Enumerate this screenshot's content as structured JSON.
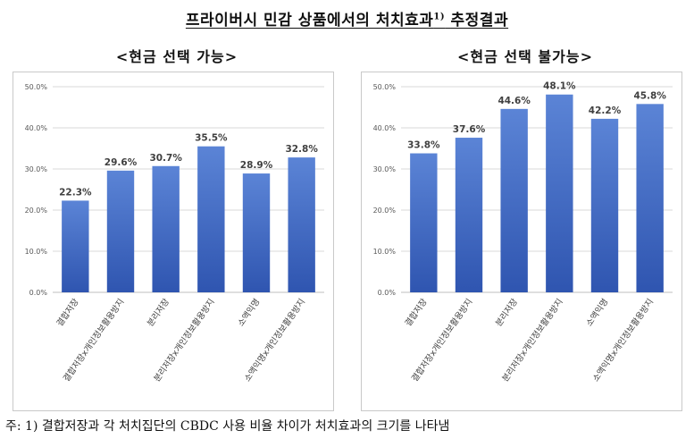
{
  "header": {
    "title": "프라이버시 민감 상품에서의 처치효과",
    "title_sup": "1)",
    "title_suffix": "추정결과"
  },
  "footnote": "주: 1) 결합저장과 각 처치집단의 CBDC 사용 비율 차이가 처치효과의 크기를 나타냄",
  "colors": {
    "bar_top": "#5b84d6",
    "bar_bottom": "#2f55b0"
  },
  "chart_data": [
    {
      "type": "bar",
      "title": "<현금 선택 가능>",
      "categories": [
        "결합저장",
        "결합저장x개인정보활용방지",
        "분리저장",
        "분리저장x개인정보활용방지",
        "소액익명",
        "소액익명x개인정보활용방지"
      ],
      "values": [
        22.3,
        29.6,
        30.7,
        35.5,
        28.9,
        32.8
      ],
      "value_labels": [
        "22.3%",
        "29.6%",
        "30.7%",
        "35.5%",
        "28.9%",
        "32.8%"
      ],
      "yticks": [
        "0.0%",
        "10.0%",
        "20.0%",
        "30.0%",
        "40.0%",
        "50.0%"
      ],
      "ylim": [
        0,
        50
      ],
      "grid": true
    },
    {
      "type": "bar",
      "title": "<현금 선택 불가능>",
      "categories": [
        "결합저장",
        "결합저장x개인정보활용방지",
        "분리저장",
        "분리저장x개인정보활용방지",
        "소액익명",
        "소액익명x개인정보활용방지"
      ],
      "values": [
        33.8,
        37.6,
        44.6,
        48.1,
        42.2,
        45.8
      ],
      "value_labels": [
        "33.8%",
        "37.6%",
        "44.6%",
        "48.1%",
        "42.2%",
        "45.8%"
      ],
      "yticks": [
        "0.0%",
        "10.0%",
        "20.0%",
        "30.0%",
        "40.0%",
        "50.0%"
      ],
      "ylim": [
        0,
        50
      ],
      "grid": true
    }
  ]
}
